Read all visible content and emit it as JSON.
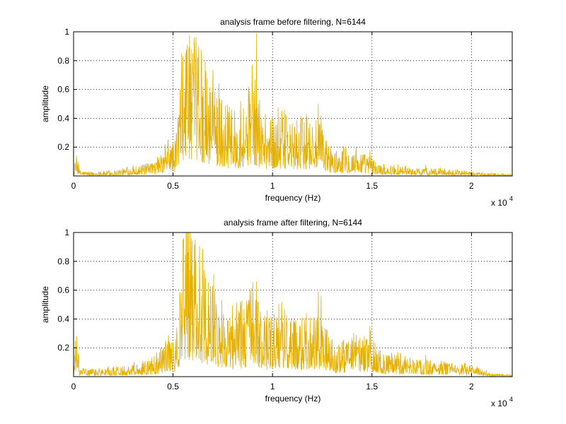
{
  "chart_data": [
    {
      "type": "line",
      "title": "analysis frame before filtering, N=6144",
      "xlabel": "frequency (Hz)",
      "ylabel": "amplitude",
      "xlim": [
        0,
        22050
      ],
      "ylim": [
        0,
        1
      ],
      "xticks": [
        0,
        5000,
        10000,
        15000,
        20000
      ],
      "xtick_labels": [
        "0",
        "0.5",
        "1",
        "1.5",
        "2"
      ],
      "xtick_multiplier": "x 10",
      "xtick_multiplier_exp": "4",
      "yticks": [
        0.2,
        0.4,
        0.6,
        0.8,
        1
      ],
      "ytick_labels": [
        "0.2",
        "0.4",
        "0.6",
        "0.8",
        "1"
      ],
      "grid": true,
      "color": "#e6b000",
      "envelope": [
        [
          0,
          0.02
        ],
        [
          150,
          0.11
        ],
        [
          300,
          0.03
        ],
        [
          1000,
          0.02
        ],
        [
          2000,
          0.03
        ],
        [
          3000,
          0.05
        ],
        [
          4000,
          0.07
        ],
        [
          4500,
          0.12
        ],
        [
          4800,
          0.22
        ],
        [
          5100,
          0.18
        ],
        [
          5500,
          0.72
        ],
        [
          5800,
          0.78
        ],
        [
          6200,
          0.72
        ],
        [
          6700,
          0.55
        ],
        [
          7100,
          0.48
        ],
        [
          7500,
          0.4
        ],
        [
          8000,
          0.33
        ],
        [
          8500,
          0.38
        ],
        [
          9000,
          0.55
        ],
        [
          9500,
          0.32
        ],
        [
          10000,
          0.3
        ],
        [
          10500,
          0.34
        ],
        [
          11000,
          0.28
        ],
        [
          11500,
          0.3
        ],
        [
          12000,
          0.32
        ],
        [
          12500,
          0.25
        ],
        [
          13000,
          0.13
        ],
        [
          13500,
          0.14
        ],
        [
          14000,
          0.14
        ],
        [
          14500,
          0.13
        ],
        [
          15000,
          0.09
        ],
        [
          15500,
          0.06
        ],
        [
          16500,
          0.05
        ],
        [
          17500,
          0.04
        ],
        [
          18500,
          0.04
        ],
        [
          20000,
          0.02
        ],
        [
          21000,
          0.015
        ],
        [
          22050,
          0.01
        ]
      ],
      "peaks": [
        [
          5500,
          0.83
        ],
        [
          5700,
          0.91
        ],
        [
          5900,
          0.88
        ],
        [
          6150,
          0.79
        ],
        [
          6500,
          0.62
        ],
        [
          7000,
          0.63
        ],
        [
          7450,
          0.53
        ],
        [
          8400,
          0.52
        ],
        [
          8850,
          0.59
        ],
        [
          9200,
          0.99
        ],
        [
          10600,
          0.46
        ],
        [
          11700,
          0.43
        ],
        [
          12300,
          0.5
        ],
        [
          12450,
          0.42
        ],
        [
          13000,
          0.15
        ],
        [
          14200,
          0.2
        ],
        [
          14900,
          0.18
        ],
        [
          16300,
          0.08
        ],
        [
          17700,
          0.08
        ],
        [
          150,
          0.11
        ]
      ]
    },
    {
      "type": "line",
      "title": "analysis frame after filtering, N=6144",
      "xlabel": "frequency (Hz)",
      "ylabel": "amplitude",
      "xlim": [
        0,
        22050
      ],
      "ylim": [
        0,
        1
      ],
      "xticks": [
        0,
        5000,
        10000,
        15000,
        20000
      ],
      "xtick_labels": [
        "0",
        "0.5",
        "1",
        "1.5",
        "2"
      ],
      "xtick_multiplier": "x 10",
      "xtick_multiplier_exp": "4",
      "yticks": [
        0.2,
        0.4,
        0.6,
        0.8,
        1
      ],
      "ytick_labels": [
        "0.2",
        "0.4",
        "0.6",
        "0.8",
        "1"
      ],
      "grid": true,
      "color": "#e6b000",
      "envelope": [
        [
          0,
          0.03
        ],
        [
          150,
          0.28
        ],
        [
          300,
          0.04
        ],
        [
          1000,
          0.04
        ],
        [
          2000,
          0.05
        ],
        [
          3000,
          0.07
        ],
        [
          4000,
          0.09
        ],
        [
          4500,
          0.16
        ],
        [
          4800,
          0.22
        ],
        [
          5100,
          0.18
        ],
        [
          5500,
          0.72
        ],
        [
          5800,
          0.78
        ],
        [
          6200,
          0.72
        ],
        [
          6700,
          0.55
        ],
        [
          7100,
          0.48
        ],
        [
          7500,
          0.4
        ],
        [
          8000,
          0.33
        ],
        [
          8500,
          0.38
        ],
        [
          9000,
          0.5
        ],
        [
          9500,
          0.3
        ],
        [
          10000,
          0.32
        ],
        [
          10500,
          0.35
        ],
        [
          11000,
          0.3
        ],
        [
          11500,
          0.31
        ],
        [
          12000,
          0.33
        ],
        [
          12500,
          0.3
        ],
        [
          13000,
          0.17
        ],
        [
          13500,
          0.19
        ],
        [
          14000,
          0.2
        ],
        [
          14500,
          0.22
        ],
        [
          15000,
          0.22
        ],
        [
          15500,
          0.12
        ],
        [
          16500,
          0.11
        ],
        [
          17500,
          0.09
        ],
        [
          18500,
          0.08
        ],
        [
          20000,
          0.06
        ],
        [
          20500,
          0.04
        ],
        [
          21000,
          0.015
        ],
        [
          22050,
          0.01
        ]
      ],
      "peaks": [
        [
          5500,
          0.95
        ],
        [
          5700,
          0.99
        ],
        [
          5900,
          0.96
        ],
        [
          6150,
          0.8
        ],
        [
          6500,
          0.7
        ],
        [
          7000,
          0.63
        ],
        [
          7450,
          0.53
        ],
        [
          8400,
          0.52
        ],
        [
          8850,
          0.5
        ],
        [
          9200,
          0.66
        ],
        [
          10600,
          0.47
        ],
        [
          11700,
          0.44
        ],
        [
          12300,
          0.59
        ],
        [
          12450,
          0.56
        ],
        [
          13000,
          0.26
        ],
        [
          14200,
          0.29
        ],
        [
          14900,
          0.35
        ],
        [
          16300,
          0.17
        ],
        [
          17700,
          0.15
        ],
        [
          150,
          0.28
        ]
      ]
    }
  ]
}
